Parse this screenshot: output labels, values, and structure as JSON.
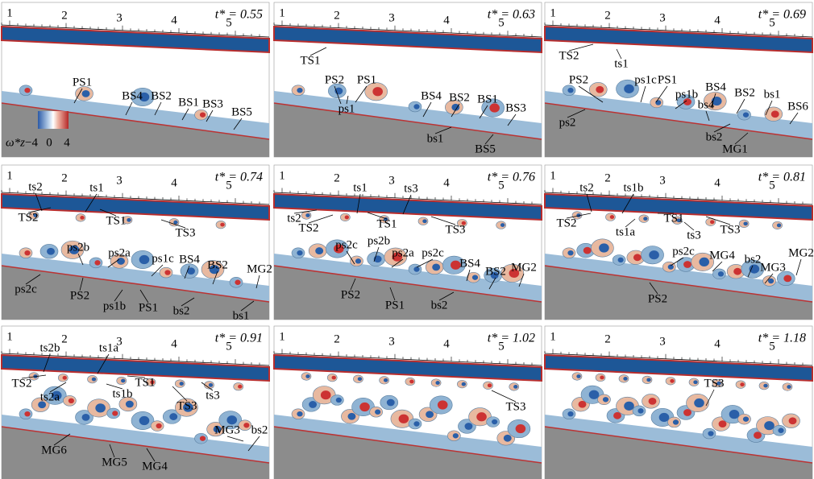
{
  "ruler_labels": [
    "1",
    "2",
    "3",
    "4",
    "5"
  ],
  "colorbar": {
    "label": "ω*z",
    "ticks": [
      "−4",
      "0",
      "4"
    ]
  },
  "panels": [
    {
      "time": "t* = 0.55",
      "labels": [
        "PS1",
        "BS4",
        "BS2",
        "BS1",
        "BS3",
        "BS5"
      ]
    },
    {
      "time": "t* = 0.63",
      "labels": [
        "TS1",
        "PS2",
        "PS1",
        "ps1",
        "BS4",
        "BS2",
        "BS1",
        "BS3",
        "bs1",
        "BS5"
      ]
    },
    {
      "time": "t* = 0.69",
      "labels": [
        "TS2",
        "ts1",
        "PS2",
        "ps1c",
        "PS1",
        "ps1b",
        "bs4",
        "BS4",
        "BS2",
        "bs1",
        "BS6",
        "ps2",
        "bs2",
        "MG1"
      ]
    },
    {
      "time": "t* = 0.74",
      "labels": [
        "ts2",
        "ts1",
        "TS2",
        "TS1",
        "TS3",
        "ps2b",
        "ps2a",
        "ps1c",
        "BS4",
        "BS2",
        "MG2",
        "ps2c",
        "PS2",
        "ps1b",
        "PS1",
        "bs2",
        "bs1"
      ]
    },
    {
      "time": "t* = 0.76",
      "labels": [
        "ts1",
        "ts3",
        "ts2",
        "TS2",
        "TS1",
        "TS3",
        "ps2c",
        "ps2b",
        "ps2a",
        "ps2c",
        "BS4",
        "BS2",
        "MG2",
        "PS2",
        "PS1",
        "bs2"
      ]
    },
    {
      "time": "t* = 0.81",
      "labels": [
        "ts2",
        "ts1b",
        "TS2",
        "TS1",
        "ts1a",
        "TS3",
        "ts3",
        "ps2c",
        "MG4",
        "bs2",
        "MG3",
        "MG2",
        "PS2"
      ]
    },
    {
      "time": "t* = 0.91",
      "labels": [
        "ts2b",
        "ts1a",
        "TS2",
        "TS1",
        "ts1b",
        "ts2a",
        "ts3",
        "TS3",
        "MG3",
        "bs2",
        "MG6",
        "MG5",
        "MG4"
      ]
    },
    {
      "time": "t* = 1.02",
      "labels": [
        "TS3"
      ]
    },
    {
      "time": "t* = 1.18",
      "labels": [
        "TS3"
      ]
    }
  ]
}
